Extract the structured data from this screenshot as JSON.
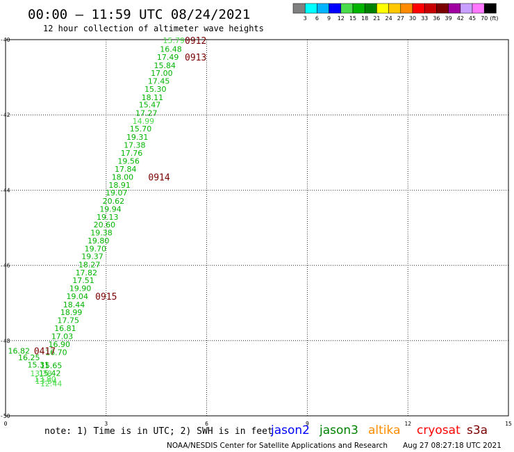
{
  "header": {
    "title": "00:00 – 11:59 UTC 08/24/2021",
    "subtitle": "12 hour collection of altimeter wave heights"
  },
  "legend": {
    "unit_label": "(ft)",
    "colors": [
      "#808080",
      "#00ffff",
      "#00b4ff",
      "#0000ff",
      "#4adc4a",
      "#00b400",
      "#008200",
      "#ffff00",
      "#ffc800",
      "#ff8c00",
      "#ff0000",
      "#c80000",
      "#7a0000",
      "#a000a0",
      "#c8a0ff",
      "#ff78ff",
      "#000000"
    ],
    "labels": [
      "3",
      "6",
      "9",
      "12",
      "15",
      "18",
      "21",
      "24",
      "27",
      "30",
      "33",
      "36",
      "39",
      "42",
      "45",
      "70"
    ]
  },
  "note": "note: 1) Time is in UTC; 2) SWH is in feet",
  "satellites": [
    {
      "name": "jason2",
      "color": "#0000ff"
    },
    {
      "name": "jason3",
      "color": "#008200"
    },
    {
      "name": "altika",
      "color": "#ff8c00"
    },
    {
      "name": "cryosat",
      "color": "#ff0000"
    },
    {
      "name": "s3a",
      "color": "#7a0000"
    }
  ],
  "footer": {
    "credit": "NOAA/NESDIS Center for Satellite Applications and Research",
    "timestamp": "Aug 27 08:27:18 UTC 2021"
  },
  "chart_data": {
    "type": "scatter",
    "xlim": [
      0,
      15
    ],
    "ylim": [
      -50,
      -40
    ],
    "x_ticks": [
      0,
      3,
      6,
      9,
      12,
      15
    ],
    "y_ticks": [
      -50,
      -48,
      -46,
      -44,
      -42,
      -40
    ],
    "x_tick_labels": [
      "0",
      "3",
      "6",
      "9",
      "12",
      "15"
    ],
    "y_tick_labels": [
      "-50",
      "-48",
      "-46",
      "-44",
      "-42",
      "-40"
    ],
    "grid": true,
    "points": [
      {
        "x": 5.02,
        "y": -40.02,
        "label": "15.79",
        "color": "#4adc4a"
      },
      {
        "x": 4.93,
        "y": -40.25,
        "label": "16.48",
        "color": "#00b400"
      },
      {
        "x": 4.84,
        "y": -40.46,
        "label": "17.49",
        "color": "#00b400"
      },
      {
        "x": 4.75,
        "y": -40.68,
        "label": "15.84",
        "color": "#00b400"
      },
      {
        "x": 4.66,
        "y": -40.89,
        "label": "17.00",
        "color": "#00b400"
      },
      {
        "x": 4.57,
        "y": -41.1,
        "label": "17.45",
        "color": "#00b400"
      },
      {
        "x": 4.47,
        "y": -41.31,
        "label": "15.30",
        "color": "#00b400"
      },
      {
        "x": 4.38,
        "y": -41.53,
        "label": "18.11",
        "color": "#00b400"
      },
      {
        "x": 4.3,
        "y": -41.73,
        "label": "15.47",
        "color": "#00b400"
      },
      {
        "x": 4.2,
        "y": -41.95,
        "label": "17.27",
        "color": "#00b400"
      },
      {
        "x": 4.11,
        "y": -42.16,
        "label": "14.99",
        "color": "#4adc4a"
      },
      {
        "x": 4.03,
        "y": -42.37,
        "label": "15.70",
        "color": "#00b400"
      },
      {
        "x": 3.93,
        "y": -42.59,
        "label": "19.31",
        "color": "#00b400"
      },
      {
        "x": 3.85,
        "y": -42.8,
        "label": "17.38",
        "color": "#00b400"
      },
      {
        "x": 3.76,
        "y": -43.01,
        "label": "17.76",
        "color": "#00b400"
      },
      {
        "x": 3.67,
        "y": -43.23,
        "label": "19.56",
        "color": "#00b400"
      },
      {
        "x": 3.58,
        "y": -43.44,
        "label": "17.84",
        "color": "#00b400"
      },
      {
        "x": 3.49,
        "y": -43.65,
        "label": "18.00",
        "color": "#00b400"
      },
      {
        "x": 3.4,
        "y": -43.86,
        "label": "18.91",
        "color": "#00b400"
      },
      {
        "x": 3.31,
        "y": -44.07,
        "label": "19.07",
        "color": "#00b400"
      },
      {
        "x": 3.22,
        "y": -44.29,
        "label": "20.62",
        "color": "#00b400"
      },
      {
        "x": 3.13,
        "y": -44.5,
        "label": "19.94",
        "color": "#00b400"
      },
      {
        "x": 3.04,
        "y": -44.71,
        "label": "19.13",
        "color": "#00b400"
      },
      {
        "x": 2.95,
        "y": -44.92,
        "label": "20.60",
        "color": "#00b400"
      },
      {
        "x": 2.86,
        "y": -45.13,
        "label": "19.38",
        "color": "#00b400"
      },
      {
        "x": 2.77,
        "y": -45.34,
        "label": "19.80",
        "color": "#00b400"
      },
      {
        "x": 2.68,
        "y": -45.55,
        "label": "19.70",
        "color": "#00b400"
      },
      {
        "x": 2.59,
        "y": -45.76,
        "label": "19.37",
        "color": "#00b400"
      },
      {
        "x": 2.5,
        "y": -45.98,
        "label": "18.27",
        "color": "#00b400"
      },
      {
        "x": 2.41,
        "y": -46.19,
        "label": "17.82",
        "color": "#00b400"
      },
      {
        "x": 2.32,
        "y": -46.4,
        "label": "17.51",
        "color": "#00b400"
      },
      {
        "x": 2.23,
        "y": -46.61,
        "label": "19.90",
        "color": "#00b400"
      },
      {
        "x": 2.14,
        "y": -46.82,
        "label": "19.04",
        "color": "#00b400"
      },
      {
        "x": 2.04,
        "y": -47.04,
        "label": "18.44",
        "color": "#00b400"
      },
      {
        "x": 1.96,
        "y": -47.25,
        "label": "18.99",
        "color": "#00b400"
      },
      {
        "x": 1.87,
        "y": -47.46,
        "label": "17.75",
        "color": "#00b400"
      },
      {
        "x": 1.78,
        "y": -47.67,
        "label": "16.81",
        "color": "#00b400"
      },
      {
        "x": 1.69,
        "y": -47.88,
        "label": "17.03",
        "color": "#00b400"
      },
      {
        "x": 1.6,
        "y": -48.1,
        "label": "16.90",
        "color": "#00b400"
      },
      {
        "x": 1.51,
        "y": -48.31,
        "label": "16.70",
        "color": "#00b400"
      },
      {
        "x": 0.4,
        "y": -48.27,
        "label": "16.82",
        "color": "#00b400"
      },
      {
        "x": 0.7,
        "y": -48.45,
        "label": "16.25",
        "color": "#00b400"
      },
      {
        "x": 0.98,
        "y": -48.64,
        "label": "15.31",
        "color": "#00b400"
      },
      {
        "x": 1.36,
        "y": -48.66,
        "label": "15.65",
        "color": "#00b400"
      },
      {
        "x": 1.32,
        "y": -48.86,
        "label": "15.42",
        "color": "#00b400"
      },
      {
        "x": 1.06,
        "y": -48.87,
        "label": "13.38",
        "color": "#4adc4a"
      },
      {
        "x": 1.18,
        "y": -49.02,
        "label": "13.80",
        "color": "#4adc4a"
      },
      {
        "x": 1.21,
        "y": -49.08,
        "label": "13.54",
        "color": "#4adc4a"
      },
      {
        "x": 1.36,
        "y": -49.14,
        "label": "12.44",
        "color": "#4adc4a"
      }
    ],
    "time_markers": [
      {
        "x": 5.67,
        "y": -40.02,
        "label": "0912"
      },
      {
        "x": 5.67,
        "y": -40.46,
        "label": "0913"
      },
      {
        "x": 4.58,
        "y": -43.65,
        "label": "0914"
      },
      {
        "x": 3.0,
        "y": -46.82,
        "label": "0915"
      },
      {
        "x": 1.17,
        "y": -48.27,
        "label": "0417",
        "color": "#008200"
      }
    ]
  }
}
